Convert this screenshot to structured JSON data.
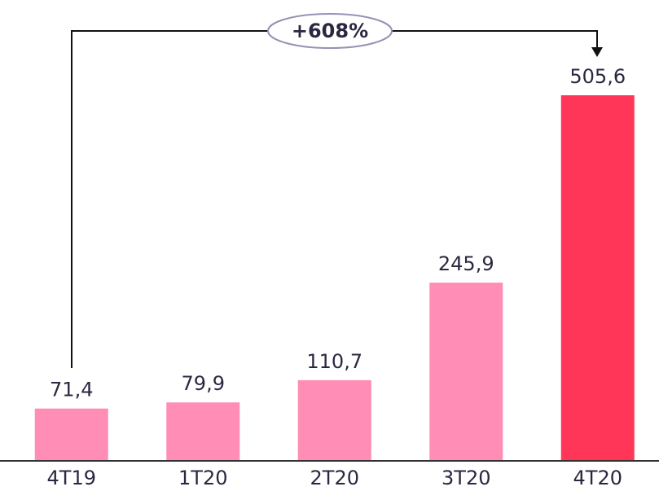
{
  "chart_data": {
    "type": "bar",
    "categories": [
      "4T19",
      "1T20",
      "2T20",
      "3T20",
      "4T20"
    ],
    "values": [
      71.4,
      79.9,
      110.7,
      245.9,
      505.6
    ],
    "value_labels": [
      "71,4",
      "79,9",
      "110,7",
      "245,9",
      "505,6"
    ],
    "colors": [
      "#ff8db6",
      "#ff8db6",
      "#ff8db6",
      "#ff8db6",
      "#ff3658"
    ],
    "annotation": "+608%"
  }
}
